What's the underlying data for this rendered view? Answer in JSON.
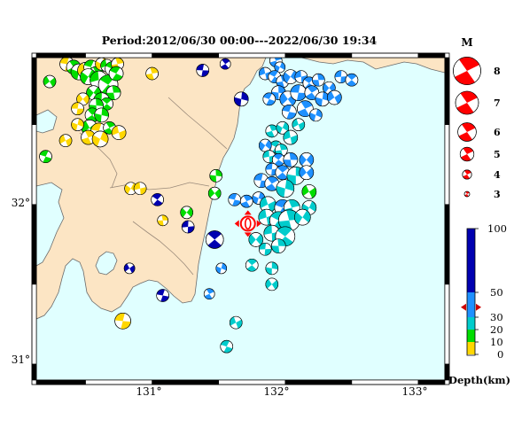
{
  "title": "Period:2012/06/30 00:00---2022/06/30 19:34",
  "map": {
    "lon_ticks": [
      "131°",
      "132°",
      "133°"
    ],
    "lat_ticks": [
      "32°",
      "31°"
    ],
    "colors": {
      "sea": "#e0ffff",
      "land": "#fce5c4",
      "border": "#9a8a7a",
      "frame": "#000000"
    }
  },
  "magnitude_legend": {
    "title": "M",
    "items": [
      "8",
      "7",
      "6",
      "5",
      "4",
      "3"
    ]
  },
  "depth_scale": {
    "title": "Depth(km)",
    "ticks": [
      "100",
      "50",
      "30",
      "20",
      "10",
      "0"
    ],
    "bands": [
      {
        "from": 0,
        "to": 10,
        "color": "#ffd700"
      },
      {
        "from": 10,
        "to": 20,
        "color": "#00dd00"
      },
      {
        "from": 20,
        "to": 30,
        "color": "#00cccc"
      },
      {
        "from": 30,
        "to": 50,
        "color": "#1e90ff"
      },
      {
        "from": 50,
        "to": 100,
        "color": "#0000b0"
      }
    ],
    "marker_depth": 38
  },
  "mainshock": {
    "lon": 131.72,
    "lat": 31.88,
    "color": "#ff0000"
  },
  "events": [
    {
      "lon": 130.23,
      "lat": 32.77,
      "color": "#00dd00",
      "size": 7
    },
    {
      "lon": 130.36,
      "lat": 32.88,
      "color": "#ffd700",
      "size": 8
    },
    {
      "lon": 130.41,
      "lat": 32.86,
      "color": "#00dd00",
      "size": 8
    },
    {
      "lon": 130.45,
      "lat": 32.83,
      "color": "#00dd00",
      "size": 9
    },
    {
      "lon": 130.5,
      "lat": 32.84,
      "color": "#ffd700",
      "size": 9
    },
    {
      "lon": 130.54,
      "lat": 32.86,
      "color": "#00dd00",
      "size": 8
    },
    {
      "lon": 130.58,
      "lat": 32.82,
      "color": "#00dd00",
      "size": 8
    },
    {
      "lon": 130.62,
      "lat": 32.88,
      "color": "#ffd700",
      "size": 7
    },
    {
      "lon": 130.66,
      "lat": 32.87,
      "color": "#00dd00",
      "size": 7
    },
    {
      "lon": 130.7,
      "lat": 32.85,
      "color": "#00dd00",
      "size": 8
    },
    {
      "lon": 130.74,
      "lat": 32.88,
      "color": "#ffd700",
      "size": 7
    },
    {
      "lon": 130.52,
      "lat": 32.8,
      "color": "#00dd00",
      "size": 9
    },
    {
      "lon": 130.6,
      "lat": 32.78,
      "color": "#00dd00",
      "size": 10
    },
    {
      "lon": 130.67,
      "lat": 32.75,
      "color": "#00dd00",
      "size": 11
    },
    {
      "lon": 130.71,
      "lat": 32.7,
      "color": "#00dd00",
      "size": 8
    },
    {
      "lon": 130.56,
      "lat": 32.7,
      "color": "#00dd00",
      "size": 8
    },
    {
      "lon": 130.62,
      "lat": 32.65,
      "color": "#00dd00",
      "size": 9
    },
    {
      "lon": 130.66,
      "lat": 32.63,
      "color": "#00dd00",
      "size": 7
    },
    {
      "lon": 130.58,
      "lat": 32.62,
      "color": "#00dd00",
      "size": 8
    },
    {
      "lon": 130.48,
      "lat": 32.66,
      "color": "#ffd700",
      "size": 7
    },
    {
      "lon": 130.44,
      "lat": 32.6,
      "color": "#ffd700",
      "size": 7
    },
    {
      "lon": 130.55,
      "lat": 32.56,
      "color": "#00dd00",
      "size": 8
    },
    {
      "lon": 130.62,
      "lat": 32.56,
      "color": "#00dd00",
      "size": 8
    },
    {
      "lon": 130.53,
      "lat": 32.48,
      "color": "#00dd00",
      "size": 9
    },
    {
      "lon": 130.6,
      "lat": 32.46,
      "color": "#ffd700",
      "size": 9
    },
    {
      "lon": 130.68,
      "lat": 32.48,
      "color": "#00dd00",
      "size": 7
    },
    {
      "lon": 130.44,
      "lat": 32.5,
      "color": "#ffd700",
      "size": 7
    },
    {
      "lon": 130.35,
      "lat": 32.4,
      "color": "#ffd700",
      "size": 7
    },
    {
      "lon": 130.2,
      "lat": 32.3,
      "color": "#00dd00",
      "size": 7
    },
    {
      "lon": 130.52,
      "lat": 32.42,
      "color": "#ffd700",
      "size": 8
    },
    {
      "lon": 130.61,
      "lat": 32.41,
      "color": "#ffd700",
      "size": 9
    },
    {
      "lon": 130.75,
      "lat": 32.45,
      "color": "#ffd700",
      "size": 8
    },
    {
      "lon": 130.73,
      "lat": 32.82,
      "color": "#00dd00",
      "size": 8
    },
    {
      "lon": 131.0,
      "lat": 32.82,
      "color": "#ffd700",
      "size": 7
    },
    {
      "lon": 130.84,
      "lat": 32.1,
      "color": "#ffd700",
      "size": 7
    },
    {
      "lon": 130.91,
      "lat": 32.1,
      "color": "#ffd700",
      "size": 7
    },
    {
      "lon": 131.04,
      "lat": 32.03,
      "color": "#0000b0",
      "size": 7
    },
    {
      "lon": 131.08,
      "lat": 31.9,
      "color": "#ffd700",
      "size": 6
    },
    {
      "lon": 131.26,
      "lat": 31.95,
      "color": "#00dd00",
      "size": 7
    },
    {
      "lon": 131.27,
      "lat": 31.86,
      "color": "#0000b0",
      "size": 7
    },
    {
      "lon": 131.47,
      "lat": 31.78,
      "color": "#0000b0",
      "size": 10
    },
    {
      "lon": 131.48,
      "lat": 32.18,
      "color": "#00dd00",
      "size": 7
    },
    {
      "lon": 131.47,
      "lat": 32.07,
      "color": "#00dd00",
      "size": 7
    },
    {
      "lon": 131.38,
      "lat": 32.84,
      "color": "#0000b0",
      "size": 7
    },
    {
      "lon": 131.55,
      "lat": 32.88,
      "color": "#0000b0",
      "size": 6
    },
    {
      "lon": 131.67,
      "lat": 32.66,
      "color": "#0000b0",
      "size": 8
    },
    {
      "lon": 130.83,
      "lat": 31.6,
      "color": "#0000b0",
      "size": 6
    },
    {
      "lon": 131.08,
      "lat": 31.43,
      "color": "#0000b0",
      "size": 7
    },
    {
      "lon": 131.43,
      "lat": 31.44,
      "color": "#1e90ff",
      "size": 6
    },
    {
      "lon": 131.52,
      "lat": 31.6,
      "color": "#1e90ff",
      "size": 6
    },
    {
      "lon": 131.63,
      "lat": 31.26,
      "color": "#00cccc",
      "size": 7
    },
    {
      "lon": 131.56,
      "lat": 31.11,
      "color": "#00cccc",
      "size": 7
    },
    {
      "lon": 131.93,
      "lat": 32.9,
      "color": "#1e90ff",
      "size": 7
    },
    {
      "lon": 131.96,
      "lat": 32.86,
      "color": "#1e90ff",
      "size": 6
    },
    {
      "lon": 131.85,
      "lat": 32.82,
      "color": "#1e90ff",
      "size": 7
    },
    {
      "lon": 131.92,
      "lat": 32.8,
      "color": "#1e90ff",
      "size": 7
    },
    {
      "lon": 131.98,
      "lat": 32.77,
      "color": "#1e90ff",
      "size": 7
    },
    {
      "lon": 132.04,
      "lat": 32.8,
      "color": "#1e90ff",
      "size": 8
    },
    {
      "lon": 132.12,
      "lat": 32.8,
      "color": "#1e90ff",
      "size": 7
    },
    {
      "lon": 132.18,
      "lat": 32.76,
      "color": "#1e90ff",
      "size": 7
    },
    {
      "lon": 132.25,
      "lat": 32.78,
      "color": "#1e90ff",
      "size": 7
    },
    {
      "lon": 132.33,
      "lat": 32.73,
      "color": "#1e90ff",
      "size": 7
    },
    {
      "lon": 132.42,
      "lat": 32.8,
      "color": "#1e90ff",
      "size": 7
    },
    {
      "lon": 132.5,
      "lat": 32.78,
      "color": "#1e90ff",
      "size": 7
    },
    {
      "lon": 131.95,
      "lat": 32.7,
      "color": "#1e90ff",
      "size": 8
    },
    {
      "lon": 132.02,
      "lat": 32.66,
      "color": "#1e90ff",
      "size": 9
    },
    {
      "lon": 132.1,
      "lat": 32.7,
      "color": "#1e90ff",
      "size": 9
    },
    {
      "lon": 132.2,
      "lat": 32.7,
      "color": "#1e90ff",
      "size": 8
    },
    {
      "lon": 132.28,
      "lat": 32.66,
      "color": "#1e90ff",
      "size": 8
    },
    {
      "lon": 132.37,
      "lat": 32.67,
      "color": "#1e90ff",
      "size": 8
    },
    {
      "lon": 132.03,
      "lat": 32.58,
      "color": "#1e90ff",
      "size": 8
    },
    {
      "lon": 132.15,
      "lat": 32.6,
      "color": "#1e90ff",
      "size": 9
    },
    {
      "lon": 132.23,
      "lat": 32.56,
      "color": "#1e90ff",
      "size": 7
    },
    {
      "lon": 132.1,
      "lat": 32.5,
      "color": "#00cccc",
      "size": 7
    },
    {
      "lon": 131.88,
      "lat": 32.66,
      "color": "#1e90ff",
      "size": 7
    },
    {
      "lon": 131.9,
      "lat": 32.46,
      "color": "#00cccc",
      "size": 7
    },
    {
      "lon": 131.98,
      "lat": 32.48,
      "color": "#00cccc",
      "size": 7
    },
    {
      "lon": 132.04,
      "lat": 32.42,
      "color": "#00cccc",
      "size": 8
    },
    {
      "lon": 131.93,
      "lat": 32.36,
      "color": "#00cccc",
      "size": 7
    },
    {
      "lon": 131.97,
      "lat": 32.34,
      "color": "#00cccc",
      "size": 7
    },
    {
      "lon": 131.85,
      "lat": 32.37,
      "color": "#1e90ff",
      "size": 7
    },
    {
      "lon": 131.88,
      "lat": 32.3,
      "color": "#00cccc",
      "size": 7
    },
    {
      "lon": 131.95,
      "lat": 32.28,
      "color": "#1e90ff",
      "size": 7
    },
    {
      "lon": 132.04,
      "lat": 32.28,
      "color": "#1e90ff",
      "size": 8
    },
    {
      "lon": 132.16,
      "lat": 32.28,
      "color": "#1e90ff",
      "size": 8
    },
    {
      "lon": 131.9,
      "lat": 32.22,
      "color": "#1e90ff",
      "size": 7
    },
    {
      "lon": 131.98,
      "lat": 32.2,
      "color": "#1e90ff",
      "size": 8
    },
    {
      "lon": 132.08,
      "lat": 32.18,
      "color": "#00cccc",
      "size": 10
    },
    {
      "lon": 132.16,
      "lat": 32.2,
      "color": "#1e90ff",
      "size": 8
    },
    {
      "lon": 131.82,
      "lat": 32.15,
      "color": "#1e90ff",
      "size": 8
    },
    {
      "lon": 131.9,
      "lat": 32.13,
      "color": "#1e90ff",
      "size": 8
    },
    {
      "lon": 132.0,
      "lat": 32.1,
      "color": "#00cccc",
      "size": 10
    },
    {
      "lon": 132.18,
      "lat": 32.08,
      "color": "#00dd00",
      "size": 8
    },
    {
      "lon": 131.62,
      "lat": 32.03,
      "color": "#1e90ff",
      "size": 7
    },
    {
      "lon": 131.71,
      "lat": 32.02,
      "color": "#1e90ff",
      "size": 7
    },
    {
      "lon": 131.8,
      "lat": 32.04,
      "color": "#1e90ff",
      "size": 7
    },
    {
      "lon": 131.87,
      "lat": 32.0,
      "color": "#00cccc",
      "size": 9
    },
    {
      "lon": 131.98,
      "lat": 31.98,
      "color": "#1e90ff",
      "size": 9
    },
    {
      "lon": 132.05,
      "lat": 31.98,
      "color": "#00cccc",
      "size": 9
    },
    {
      "lon": 132.18,
      "lat": 31.98,
      "color": "#00cccc",
      "size": 8
    },
    {
      "lon": 131.86,
      "lat": 31.92,
      "color": "#00cccc",
      "size": 9
    },
    {
      "lon": 131.95,
      "lat": 31.9,
      "color": "#00cccc",
      "size": 10
    },
    {
      "lon": 132.03,
      "lat": 31.9,
      "color": "#00cccc",
      "size": 12
    },
    {
      "lon": 132.13,
      "lat": 31.92,
      "color": "#00cccc",
      "size": 9
    },
    {
      "lon": 131.9,
      "lat": 31.82,
      "color": "#00cccc",
      "size": 9
    },
    {
      "lon": 132.0,
      "lat": 31.8,
      "color": "#00cccc",
      "size": 11
    },
    {
      "lon": 131.95,
      "lat": 31.74,
      "color": "#00cccc",
      "size": 8
    },
    {
      "lon": 131.78,
      "lat": 31.78,
      "color": "#00cccc",
      "size": 8
    },
    {
      "lon": 131.85,
      "lat": 31.72,
      "color": "#00cccc",
      "size": 7
    },
    {
      "lon": 131.75,
      "lat": 31.62,
      "color": "#00cccc",
      "size": 7
    },
    {
      "lon": 131.9,
      "lat": 31.6,
      "color": "#00cccc",
      "size": 7
    },
    {
      "lon": 131.9,
      "lat": 31.5,
      "color": "#00cccc",
      "size": 7
    },
    {
      "lon": 130.78,
      "lat": 31.27,
      "color": "#ffd700",
      "size": 9
    }
  ]
}
